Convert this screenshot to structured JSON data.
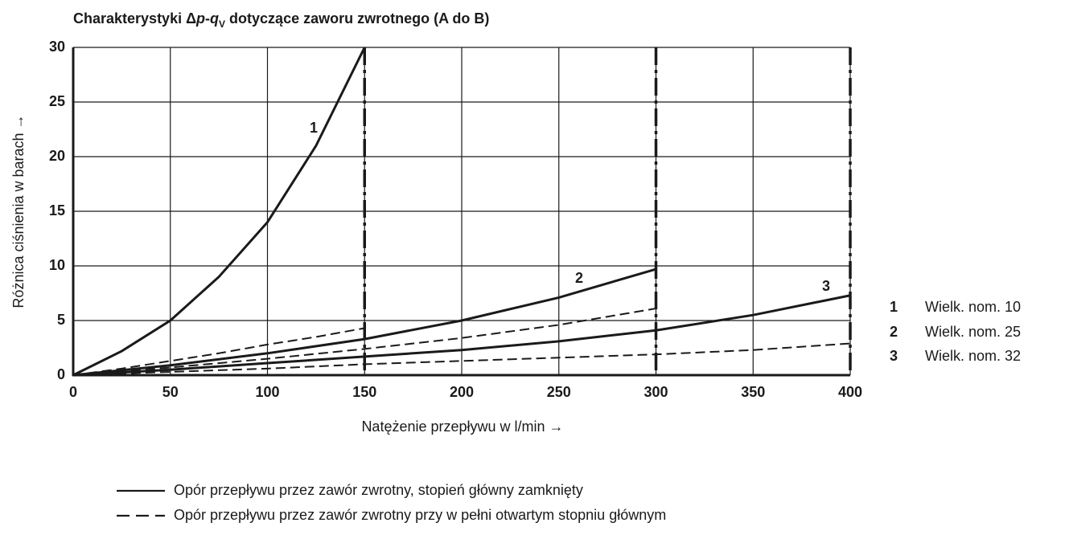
{
  "chart_data": {
    "type": "line",
    "title_parts": [
      "Charakterystyki Δ",
      "p",
      "-",
      "q",
      "V",
      " dotyczące zaworu zwrotnego (A do B)"
    ],
    "xlabel": "Natężenie przepływu w l/min →",
    "ylabel": "Różnica ciśnienia w barach →",
    "xlim": [
      0,
      400
    ],
    "ylim": [
      0,
      30
    ],
    "xticks": [
      0,
      50,
      100,
      150,
      200,
      250,
      300,
      350,
      400
    ],
    "yticks": [
      0,
      5,
      10,
      15,
      20,
      25,
      30
    ],
    "grid": true,
    "color": "#1a1a1a",
    "sizes": [
      {
        "number": "1",
        "name": "Wielk. nom. 10",
        "x": [
          0,
          25,
          50,
          75,
          100,
          125,
          150
        ],
        "closed": [
          0,
          2.2,
          5,
          9,
          14,
          21,
          30
        ],
        "open": [
          0,
          0.6,
          1.3,
          2.0,
          2.8,
          3.5,
          4.3
        ]
      },
      {
        "number": "2",
        "name": "Wielk. nom. 25",
        "x": [
          0,
          50,
          100,
          150,
          200,
          250,
          300
        ],
        "closed": [
          0,
          0.9,
          2,
          3.3,
          5,
          7.1,
          9.7
        ],
        "open": [
          0,
          0.7,
          1.5,
          2.4,
          3.4,
          4.6,
          6.1
        ]
      },
      {
        "number": "3",
        "name": "Wielk. nom. 32",
        "x": [
          0,
          50,
          100,
          150,
          200,
          250,
          300,
          350,
          400
        ],
        "closed": [
          0,
          0.5,
          1.1,
          1.7,
          2.3,
          3.1,
          4.1,
          5.5,
          7.3
        ],
        "open": [
          0,
          0.3,
          0.6,
          1.0,
          1.3,
          1.6,
          1.9,
          2.3,
          2.9
        ]
      }
    ],
    "line_styles": [
      {
        "style": "solid",
        "label": "Opór przepływu przez zawór zwrotny, stopień główny zamknięty"
      },
      {
        "style": "dashed",
        "label": "Opór przepływu przez zawór zwrotny przy w pełni otwartym stopniu głównym"
      }
    ]
  }
}
